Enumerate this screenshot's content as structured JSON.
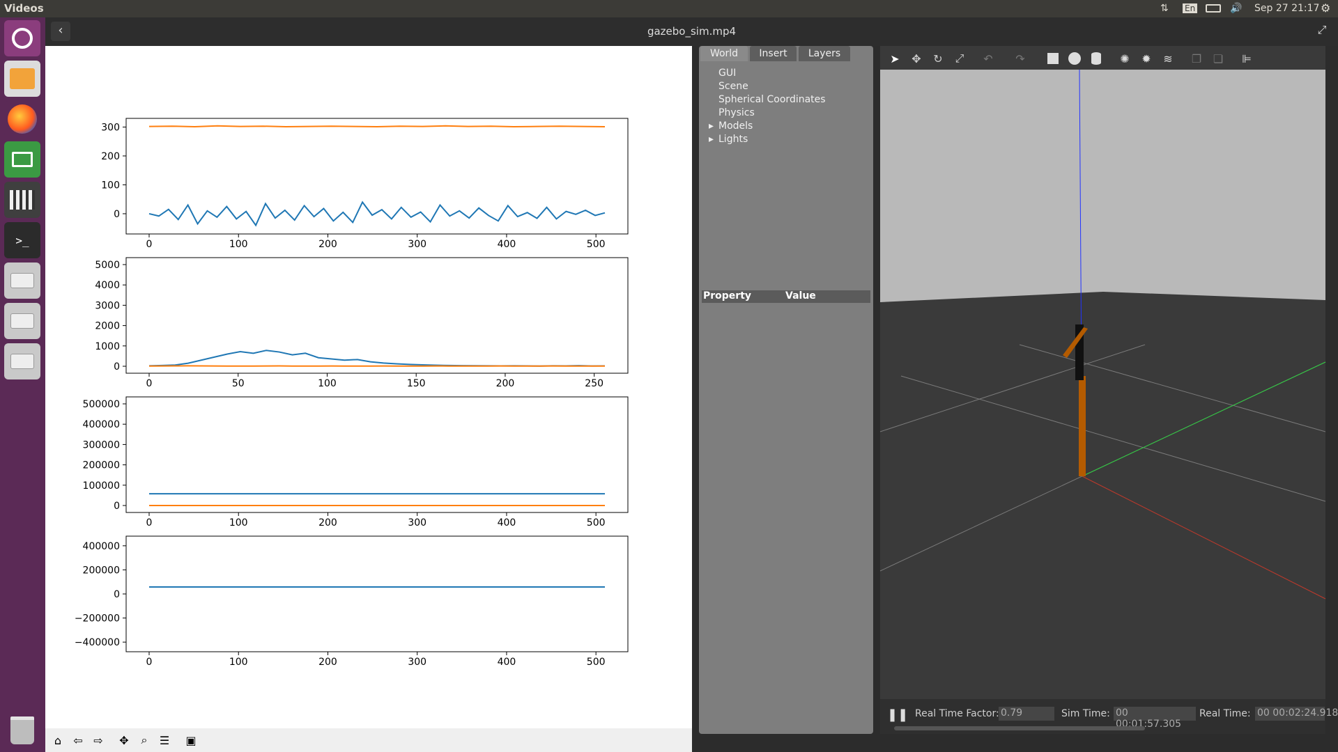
{
  "topbar": {
    "app_name": "Videos",
    "lang": "En",
    "datetime": "Sep 27 21:17"
  },
  "titlebar": {
    "title": "gazebo_sim.mp4"
  },
  "launcher": {
    "icons": [
      "ubuntu-icon",
      "files-icon",
      "firefox-icon",
      "remote-desktop-icon",
      "video-editor-icon",
      "terminal-icon",
      "drive-icon",
      "drive-icon",
      "drive-icon",
      "trash-icon"
    ]
  },
  "matplotlib": {
    "toolbar": [
      "home-icon",
      "back-icon",
      "forward-icon",
      "pan-icon",
      "zoom-icon",
      "configure-subplots-icon",
      "save-icon"
    ]
  },
  "chart_data": [
    {
      "type": "line",
      "xlim": [
        0,
        510
      ],
      "ylim": [
        -70,
        330
      ],
      "yticks": [
        "300",
        "200",
        "100",
        "0"
      ],
      "xticks": [
        "0",
        "100",
        "200",
        "300",
        "400",
        "500"
      ],
      "series": [
        {
          "color": "#ff7f0e",
          "values": [
            302,
            303,
            301,
            304,
            302,
            303,
            301,
            302,
            303,
            302,
            301,
            303,
            302,
            304,
            302,
            303,
            301,
            302,
            303,
            302,
            301
          ]
        },
        {
          "color": "#1f77b4",
          "values": [
            0,
            -8,
            15,
            -20,
            30,
            -35,
            10,
            -12,
            25,
            -18,
            8,
            -40,
            35,
            -15,
            12,
            -22,
            28,
            -10,
            18,
            -25,
            5,
            -30,
            40,
            -5,
            14,
            -18,
            22,
            -12,
            6,
            -28,
            30,
            -8,
            10,
            -15,
            20,
            -6,
            -25,
            28,
            -10,
            4,
            -16,
            22,
            -18,
            8,
            -2,
            12,
            -6,
            3
          ]
        }
      ]
    },
    {
      "type": "line",
      "xlim": [
        0,
        256
      ],
      "ylim": [
        0,
        5000
      ],
      "yticks": [
        "5000",
        "4000",
        "3000",
        "2000",
        "1000",
        "0"
      ],
      "xticks": [
        "0",
        "50",
        "100",
        "150",
        "200",
        "250"
      ],
      "series": [
        {
          "color": "#1f77b4",
          "values": [
            20,
            40,
            60,
            150,
            300,
            450,
            600,
            720,
            640,
            780,
            700,
            560,
            640,
            420,
            360,
            300,
            330,
            220,
            160,
            120,
            90,
            70,
            50,
            40,
            30,
            25,
            20,
            15,
            20,
            15,
            10,
            20,
            15,
            30,
            12,
            15
          ]
        },
        {
          "color": "#ff7f0e",
          "values": [
            10,
            12,
            15,
            20,
            15,
            12,
            10,
            8,
            10,
            12,
            15,
            10,
            8,
            10,
            12,
            10,
            8,
            10,
            12,
            10,
            8,
            10,
            12,
            10,
            8,
            10,
            10,
            12,
            10,
            8,
            10,
            12,
            10,
            8,
            10,
            10
          ]
        }
      ]
    },
    {
      "type": "line",
      "xlim": [
        0,
        510
      ],
      "ylim": [
        0,
        500000
      ],
      "yticks": [
        "500000",
        "400000",
        "300000",
        "200000",
        "100000",
        "0"
      ],
      "xticks": [
        "0",
        "100",
        "200",
        "300",
        "400",
        "500"
      ],
      "series": [
        {
          "color": "#1f77b4",
          "values": [
            58000,
            58000
          ]
        },
        {
          "color": "#ff7f0e",
          "values": [
            200,
            200
          ]
        }
      ]
    },
    {
      "type": "line",
      "xlim": [
        0,
        510
      ],
      "ylim": [
        -480000,
        480000
      ],
      "yticks": [
        "400000",
        "200000",
        "0",
        "−200000",
        "−400000"
      ],
      "xticks": [
        "0",
        "100",
        "200",
        "300",
        "400",
        "500"
      ],
      "series": [
        {
          "color": "#1f77b4",
          "values": [
            58000,
            58000
          ]
        }
      ]
    }
  ],
  "gazebo": {
    "tabs": [
      "World",
      "Insert",
      "Layers"
    ],
    "tree": [
      "GUI",
      "Scene",
      "Spherical Coordinates",
      "Physics",
      "Models",
      "Lights"
    ],
    "prop_header": "Property",
    "value_header": "Value",
    "tools": [
      "select-icon",
      "translate-icon",
      "rotate-icon",
      "scale-icon",
      "undo-icon",
      "redo-icon",
      "box-icon",
      "sphere-icon",
      "cylinder-icon",
      "point-light-icon",
      "spot-light-icon",
      "directional-light-icon",
      "copy-icon",
      "paste-icon",
      "align-icon"
    ],
    "status": {
      "rtf_label": "Real Time Factor:",
      "rtf": "0.79",
      "sim_label": "Sim Time:",
      "sim": "00 00:01:57.305",
      "real_label": "Real Time:",
      "real": "00 00:02:24.918"
    }
  }
}
